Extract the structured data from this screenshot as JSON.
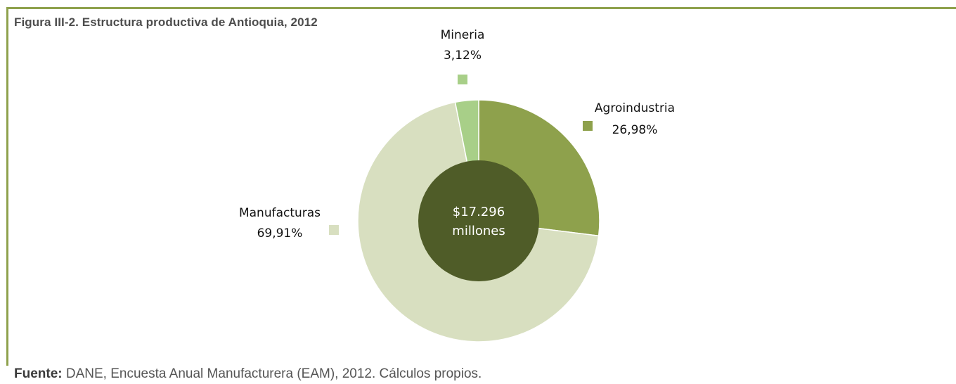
{
  "figure": {
    "title": "Figura III-2. Estructura productiva de Antioquia, 2012"
  },
  "source": {
    "prefix": "Fuente:",
    "text": " DANE, Encuesta Anual Manufacturera (EAM), 2012. Cálculos propios."
  },
  "chart_data": {
    "type": "pie",
    "variant": "donut",
    "center_label": [
      "$17.296",
      "millones"
    ],
    "slices": [
      {
        "name": "Agroindustria",
        "value": 26.98,
        "value_label": "26,98%",
        "color": "#8ea14c"
      },
      {
        "name": "Manufacturas",
        "value": 69.91,
        "value_label": "69,91%",
        "color": "#d8dfc0"
      },
      {
        "name": "Mineria",
        "value": 3.12,
        "value_label": "3,12%",
        "color": "#a8cf88"
      }
    ],
    "center_color": "#4f5c28",
    "legend": "markers next to labels"
  }
}
